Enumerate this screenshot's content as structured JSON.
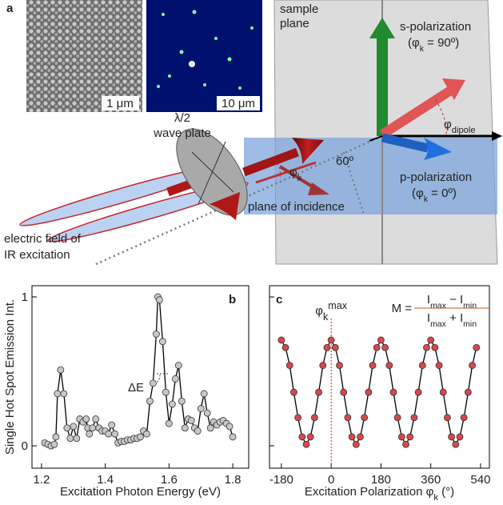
{
  "panel_labels": [
    "a",
    "b",
    "c"
  ],
  "diagram": {
    "sem_scale": "1 μm",
    "fluor_scale": "10 μm",
    "sample": "sample",
    "plane": "plane",
    "s_pol": "s-polarization",
    "s_angle": [
      "(φ",
      "k",
      " = 90º)"
    ],
    "dipole": [
      "φ",
      "dipole"
    ],
    "p_pol": "p-polarization",
    "p_angle": [
      "(φ",
      "k",
      " = 0º)"
    ],
    "incidence": "plane of incidence",
    "angle60": "60º",
    "phik": [
      "φ",
      "k"
    ],
    "waveplate1": "λ/2",
    "waveplate2": "wave plate",
    "field1": "electric field of",
    "field2": "IR excitation"
  },
  "chart_data": [
    {
      "type": "line",
      "xlabel": "Excitation Photon Energy (eV)",
      "ylabel": "Single Hot Spot Emission Int.",
      "annotation": "ΔE",
      "x": [
        1.21,
        1.22,
        1.23,
        1.24,
        1.245,
        1.25,
        1.26,
        1.27,
        1.28,
        1.29,
        1.3,
        1.31,
        1.32,
        1.33,
        1.34,
        1.345,
        1.35,
        1.36,
        1.37,
        1.38,
        1.39,
        1.4,
        1.41,
        1.42,
        1.43,
        1.44,
        1.45,
        1.46,
        1.47,
        1.48,
        1.49,
        1.5,
        1.51,
        1.52,
        1.53,
        1.54,
        1.55,
        1.56,
        1.565,
        1.57,
        1.58,
        1.59,
        1.6,
        1.61,
        1.62,
        1.63,
        1.64,
        1.65,
        1.66,
        1.67,
        1.68,
        1.69,
        1.7,
        1.71,
        1.72,
        1.73,
        1.74,
        1.75,
        1.76,
        1.77,
        1.78,
        1.79,
        1.8
      ],
      "values": [
        0.02,
        0.01,
        0.0,
        0.01,
        0.06,
        0.35,
        0.51,
        0.35,
        0.12,
        0.05,
        0.13,
        0.05,
        0.18,
        0.16,
        0.18,
        0.12,
        0.08,
        0.12,
        0.18,
        0.12,
        0.1,
        0.1,
        0.08,
        0.14,
        0.08,
        0.02,
        0.03,
        0.03,
        0.04,
        0.04,
        0.05,
        0.05,
        0.06,
        0.1,
        0.08,
        0.3,
        0.42,
        0.75,
        1.0,
        0.98,
        0.7,
        0.36,
        0.15,
        0.28,
        0.45,
        0.54,
        0.3,
        0.12,
        0.18,
        0.17,
        0.12,
        0.1,
        0.25,
        0.35,
        0.22,
        0.12,
        0.16,
        0.14,
        0.16,
        0.17,
        0.15,
        0.13,
        0.06
      ],
      "color": "#c8c8c8",
      "xlim": [
        1.17,
        1.85
      ],
      "xticks": [
        1.2,
        1.4,
        1.6,
        1.8
      ],
      "ylim": [
        -0.15,
        1.075
      ],
      "yticks": [
        0,
        1
      ]
    },
    {
      "type": "line",
      "xlabel": [
        "Excitation Polarization φ",
        "k",
        " (°)"
      ],
      "annotation": [
        "φ",
        "k",
        "max"
      ],
      "formula": {
        "lhs": "M =",
        "num": [
          "I",
          "max",
          " − I",
          "min"
        ],
        "den": [
          "I",
          "max",
          " + I",
          "min"
        ]
      },
      "x": [
        -180,
        -165,
        -150,
        -135,
        -120,
        -105,
        -90,
        -75,
        -60,
        -45,
        -30,
        -15,
        0,
        15,
        30,
        45,
        60,
        75,
        90,
        105,
        120,
        135,
        150,
        165,
        180,
        195,
        210,
        225,
        240,
        255,
        270,
        285,
        300,
        315,
        330,
        345,
        360,
        375,
        390,
        405,
        420,
        435,
        450,
        465,
        480,
        495,
        510,
        525
      ],
      "values": [
        0.71,
        0.66,
        0.54,
        0.36,
        0.19,
        0.06,
        0.01,
        0.06,
        0.19,
        0.36,
        0.54,
        0.66,
        0.71,
        0.66,
        0.54,
        0.36,
        0.19,
        0.06,
        0.01,
        0.06,
        0.19,
        0.36,
        0.54,
        0.66,
        0.71,
        0.66,
        0.54,
        0.36,
        0.19,
        0.06,
        0.01,
        0.06,
        0.19,
        0.36,
        0.54,
        0.66,
        0.71,
        0.66,
        0.54,
        0.36,
        0.19,
        0.06,
        0.01,
        0.06,
        0.19,
        0.36,
        0.54,
        0.66
      ],
      "color": "#d8474a",
      "xlim": [
        -223,
        572
      ],
      "xticks": [
        -180,
        0,
        180,
        360,
        540
      ],
      "ylim": [
        -0.15,
        1.075
      ]
    }
  ]
}
